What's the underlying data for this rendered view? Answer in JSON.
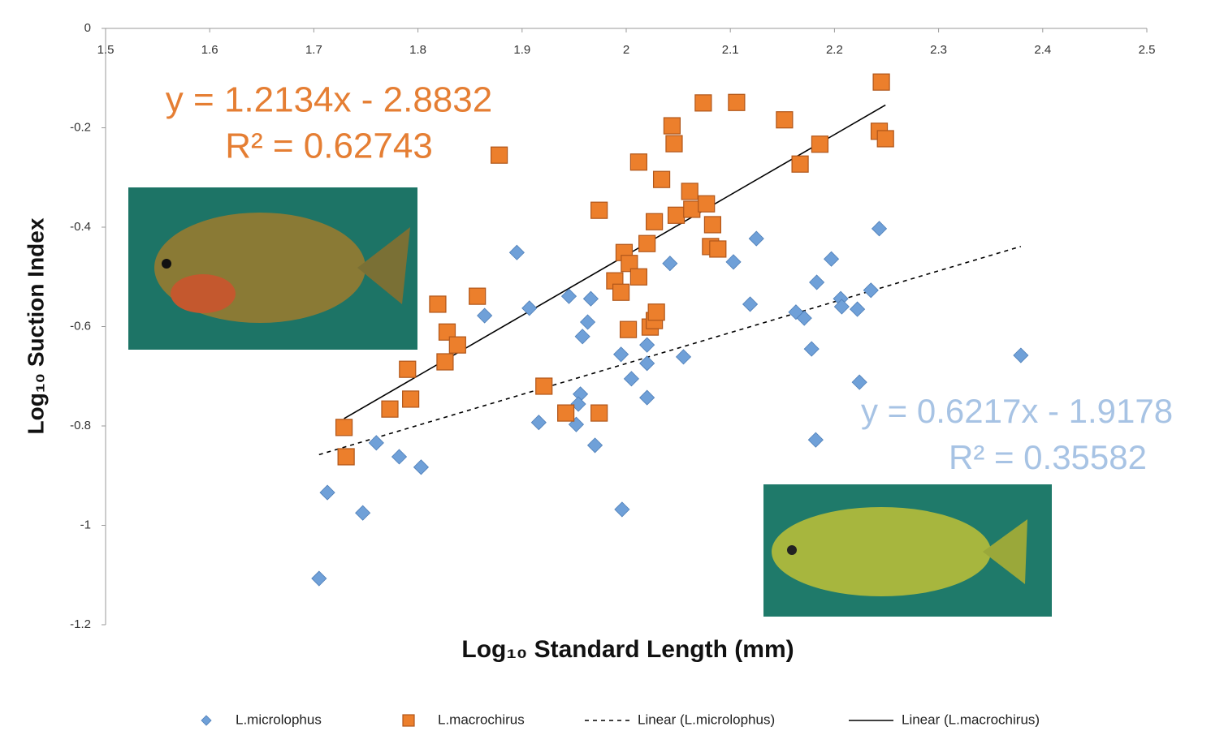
{
  "chart_data": {
    "type": "scatter",
    "xlabel": "Log₁₀ Standard Length (mm)",
    "ylabel": "Log₁₀ Suction Index",
    "xlim": [
      1.5,
      2.5
    ],
    "xticks": [
      1.5,
      1.6,
      1.7,
      1.8,
      1.9,
      2,
      2.1,
      2.2,
      2.3,
      2.4,
      2.5
    ],
    "ylim": [
      -1.2,
      0
    ],
    "yticks": [
      0,
      -0.2,
      -0.4,
      -0.6,
      -0.8,
      -1,
      -1.2
    ],
    "grid": false,
    "series": [
      {
        "name": "L.microlophus",
        "color": "#6fa0d8",
        "marker": "diamond",
        "x": [
          1.705,
          1.713,
          1.747,
          1.76,
          1.782,
          1.803,
          1.895,
          1.864,
          1.907,
          1.916,
          1.945,
          1.966,
          1.963,
          1.958,
          1.956,
          1.954,
          1.952,
          1.97,
          1.996,
          1.995,
          2.005,
          2.02,
          2.02,
          2.02,
          2.042,
          2.055,
          2.103,
          2.125,
          2.119,
          2.163,
          2.171,
          2.183,
          2.178,
          2.197,
          2.206,
          2.207,
          2.182,
          2.222,
          2.224,
          2.235,
          2.243,
          2.379
        ],
        "values": [
          -1.107,
          -0.934,
          -0.975,
          -0.834,
          -0.862,
          -0.883,
          -0.451,
          -0.578,
          -0.563,
          -0.793,
          -0.539,
          -0.544,
          -0.591,
          -0.62,
          -0.736,
          -0.756,
          -0.797,
          -0.839,
          -0.968,
          -0.656,
          -0.705,
          -0.637,
          -0.674,
          -0.743,
          -0.473,
          -0.661,
          -0.47,
          -0.423,
          -0.555,
          -0.571,
          -0.583,
          -0.511,
          -0.645,
          -0.464,
          -0.544,
          -0.56,
          -0.828,
          -0.565,
          -0.712,
          -0.527,
          -0.403,
          -0.658
        ]
      },
      {
        "name": "L.macrochirus",
        "color": "#ec7f2c",
        "marker": "square",
        "x": [
          1.729,
          1.731,
          1.773,
          1.79,
          1.793,
          1.819,
          1.826,
          1.828,
          1.838,
          1.857,
          1.878,
          1.921,
          1.942,
          1.974,
          1.974,
          1.989,
          1.995,
          1.998,
          2.003,
          2.012,
          2.002,
          2.012,
          2.023,
          2.027,
          2.029,
          2.02,
          2.027,
          2.034,
          2.044,
          2.046,
          2.048,
          2.061,
          2.063,
          2.077,
          2.083,
          2.081,
          2.088,
          2.074,
          2.106,
          2.152,
          2.167,
          2.186,
          2.245,
          2.243,
          2.249
        ],
        "values": [
          -0.803,
          -0.862,
          -0.766,
          -0.686,
          -0.746,
          -0.555,
          -0.671,
          -0.611,
          -0.637,
          -0.539,
          -0.255,
          -0.72,
          -0.774,
          -0.774,
          -0.366,
          -0.508,
          -0.531,
          -0.451,
          -0.473,
          -0.5,
          -0.606,
          -0.269,
          -0.601,
          -0.588,
          -0.571,
          -0.433,
          -0.389,
          -0.304,
          -0.196,
          -0.232,
          -0.376,
          -0.328,
          -0.364,
          -0.353,
          -0.395,
          -0.439,
          -0.444,
          -0.15,
          -0.149,
          -0.184,
          -0.273,
          -0.233,
          -0.108,
          -0.207,
          -0.222
        ]
      }
    ],
    "trendlines": [
      {
        "name": "Linear (L.microlophus)",
        "color": "#000000",
        "dashed": true,
        "slope": 0.6217,
        "intercept": -1.9178,
        "xrange": [
          1.705,
          2.379
        ]
      },
      {
        "name": "Linear (L.macrochirus)",
        "color": "#000000",
        "dashed": false,
        "slope": 1.2134,
        "intercept": -2.8832,
        "xrange": [
          1.729,
          2.249
        ]
      }
    ],
    "annotations": [
      {
        "text": "y = 1.2134x - 2.8832",
        "color": "#e57e33"
      },
      {
        "text": "R² = 0.62743",
        "color": "#e57e33"
      },
      {
        "text": "y = 0.6217x - 1.9178",
        "color": "#a7c3e4"
      },
      {
        "text": "R² = 0.35582",
        "color": "#a7c3e4"
      }
    ]
  }
}
